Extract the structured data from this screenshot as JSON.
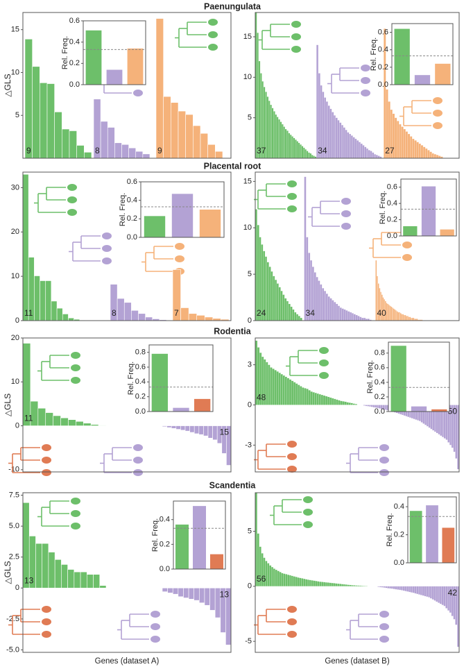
{
  "chart_data": [
    {
      "type": "bar",
      "title": "Paenungulata",
      "ylabel": "△GLS",
      "ylim": [
        0,
        17
      ],
      "yticks": [
        5,
        10,
        15
      ],
      "series": [
        {
          "color": "#6dbf6a",
          "n": 9,
          "values": [
            13.9,
            10.7,
            8.8,
            8.7,
            5.4,
            3.4,
            3.2,
            1.5,
            0.7
          ]
        },
        {
          "color": "#b3a2d4",
          "n": 8,
          "values": [
            6.9,
            4.3,
            3.6,
            1.8,
            1.6,
            1.2,
            0.8,
            0.5
          ]
        },
        {
          "color": "#f5b27a",
          "n": 9,
          "values": [
            16.3,
            7.2,
            6.5,
            5.5,
            5.1,
            3.8,
            2.9,
            1.6,
            0.8
          ]
        }
      ],
      "inset": {
        "ylabel": "Rel. Freq.",
        "values": [
          0.51,
          0.14,
          0.34
        ],
        "colors": [
          "#6dbf6a",
          "#b3a2d4",
          "#f5b27a"
        ],
        "ylim": [
          0,
          0.6
        ],
        "yticks": [
          {
            "value": 0,
            "label": "0.0"
          },
          0.2,
          0.4,
          0.6
        ],
        "reference": 0.33
      }
    },
    {
      "type": "bar",
      "ylim": [
        0,
        18
      ],
      "yticks": [
        5,
        10,
        15
      ],
      "series": [
        {
          "color": "#6dbf6a",
          "n": 37,
          "values": [
            18,
            15.5,
            12,
            10.5,
            9.5,
            8.8,
            8.2,
            7.6,
            7.1,
            6.6,
            6.2,
            5.8,
            5.4,
            5.1,
            4.8,
            4.5,
            4.2,
            3.9,
            3.6,
            3.4,
            3.1,
            2.9,
            2.7,
            2.5,
            2.3,
            2.1,
            1.9,
            1.7,
            1.5,
            1.3,
            1.1,
            0.9,
            0.7,
            0.6,
            0.4,
            0.3,
            0.2
          ]
        },
        {
          "color": "#b3a2d4",
          "n": 34,
          "values": [
            14,
            10.5,
            9,
            8.2,
            7.5,
            7,
            6.5,
            6.1,
            5.7,
            5.3,
            5,
            4.7,
            4.4,
            4.1,
            3.8,
            3.5,
            3.2,
            3,
            2.8,
            2.6,
            2.4,
            2.2,
            2,
            1.8,
            1.6,
            1.4,
            1.2,
            1,
            0.9,
            0.7,
            0.5,
            0.4,
            0.3,
            0.2
          ]
        },
        {
          "color": "#f5b27a",
          "n": 27,
          "values": [
            16,
            8.5,
            7,
            6,
            5.5,
            5,
            4.6,
            4.2,
            3.9,
            3.6,
            3.3,
            3,
            2.7,
            2.4,
            2.2,
            2,
            1.8,
            1.6,
            1.4,
            1.2,
            1,
            0.8,
            0.6,
            0.5,
            0.4,
            0.3,
            0.2
          ]
        }
      ],
      "inset": {
        "ylabel": "Rel. Freq.",
        "values": [
          0.64,
          0.11,
          0.24
        ],
        "colors": [
          "#6dbf6a",
          "#b3a2d4",
          "#f5b27a"
        ],
        "ylim": [
          0,
          0.7
        ],
        "yticks": [
          {
            "value": 0,
            "label": "0.0"
          },
          0.2,
          0.4,
          0.6
        ],
        "reference": 0.33
      }
    },
    {
      "type": "bar",
      "title": "Placental root",
      "ylim": [
        0,
        33.5
      ],
      "yticks": [
        0,
        10,
        20,
        30
      ],
      "series": [
        {
          "color": "#6dbf6a",
          "n": 11,
          "values": [
            33,
            14.3,
            10.1,
            9,
            9,
            4.4,
            2.8,
            1.5,
            0.6,
            0.3,
            0.1
          ]
        },
        {
          "color": "#b3a2d4",
          "n": 8,
          "values": [
            8.2,
            5,
            4.1,
            2.3,
            1.6,
            0.8,
            0.4,
            0.2
          ]
        },
        {
          "color": "#f5b27a",
          "n": 7,
          "values": [
            11.5,
            2.9,
            1.6,
            1.2,
            0.8,
            0.5,
            0.3
          ]
        }
      ],
      "inset": {
        "ylabel": "Rel. Freq.",
        "values": [
          0.23,
          0.47,
          0.3
        ],
        "colors": [
          "#6dbf6a",
          "#b3a2d4",
          "#f5b27a"
        ],
        "ylim": [
          0,
          0.6
        ],
        "yticks": [
          {
            "value": 0,
            "label": "0.0"
          },
          0.2,
          0.4,
          0.6
        ],
        "reference": 0.33
      }
    },
    {
      "type": "bar",
      "ylim": [
        0,
        16
      ],
      "yticks": [
        0,
        5,
        10,
        15
      ],
      "series": [
        {
          "color": "#6dbf6a",
          "n": 24,
          "values": [
            12,
            10.3,
            9,
            8.2,
            7.5,
            6.9,
            6.3,
            5.8,
            5.3,
            4.8,
            4.4,
            4,
            3.6,
            3.2,
            2.8,
            2.4,
            2.1,
            1.8,
            1.5,
            1.2,
            0.9,
            0.7,
            0.5,
            0.3
          ]
        },
        {
          "color": "#b3a2d4",
          "n": 34,
          "values": [
            15.5,
            9,
            7.3,
            6.5,
            5.8,
            5.2,
            4.7,
            4.3,
            3.9,
            3.5,
            3.2,
            2.9,
            2.6,
            2.4,
            2.2,
            2,
            1.8,
            1.6,
            1.4,
            1.3,
            1.2,
            1.1,
            1,
            0.9,
            0.8,
            0.7,
            0.6,
            0.5,
            0.4,
            0.3,
            0.3,
            0.2,
            0.2,
            0.1
          ]
        },
        {
          "color": "#f5b27a",
          "n": 40,
          "values": [
            6.5,
            4.8,
            4,
            3.5,
            3.1,
            2.8,
            2.5,
            2.3,
            2.1,
            1.9,
            1.8,
            1.7,
            1.6,
            1.5,
            1.4,
            1.3,
            1.2,
            1.1,
            1,
            0.9,
            0.9,
            0.8,
            0.7,
            0.7,
            0.6,
            0.6,
            0.5,
            0.5,
            0.4,
            0.4,
            0.3,
            0.3,
            0.3,
            0.2,
            0.2,
            0.2,
            0.1,
            0.1,
            0.1,
            0.1
          ]
        }
      ],
      "inset": {
        "ylabel": "Rel. Freq.",
        "values": [
          0.12,
          0.61,
          0.08
        ],
        "colors": [
          "#6dbf6a",
          "#b3a2d4",
          "#f5b27a"
        ],
        "ylim": [
          0,
          0.7
        ],
        "yticks": [
          {
            "value": 0,
            "label": "0.0"
          },
          0.2,
          0.4,
          0.6
        ],
        "reference": 0.33
      }
    },
    {
      "type": "bar",
      "title": "Rodentia",
      "ylabel": "△GLS",
      "ylim": [
        -10.5,
        20
      ],
      "yticks": [
        -10,
        0,
        10,
        20
      ],
      "series": [
        {
          "color": "#6dbf6a",
          "n": 11,
          "values": [
            18.8,
            5.6,
            4,
            3,
            2.3,
            1.8,
            1.4,
            1,
            0.6,
            0.3,
            0.1
          ]
        },
        {
          "color": "#b3a2d4",
          "n": 15,
          "values": [
            -0.2,
            -0.4,
            -0.6,
            -0.8,
            -1,
            -1.2,
            -1.5,
            -1.8,
            -2,
            -2.3,
            -2.8,
            -3.2,
            -4,
            -6.3,
            -9
          ]
        }
      ],
      "inset": {
        "ylabel": "Rel. Freq.",
        "values": [
          0.78,
          0.05,
          0.17
        ],
        "colors": [
          "#6dbf6a",
          "#b3a2d4",
          "#e07b54"
        ],
        "ylim": [
          0,
          0.9
        ],
        "yticks": [
          {
            "value": 0,
            "label": "0.0"
          },
          0.2,
          0.4,
          0.6,
          0.8
        ],
        "reference": 0.33
      }
    },
    {
      "type": "bar",
      "ylim": [
        -5,
        5
      ],
      "yticks": [
        -3,
        0,
        3
      ],
      "series": [
        {
          "color": "#6dbf6a",
          "n": 48,
          "values": [
            4.8,
            4.3,
            3.9,
            3.6,
            3.4,
            3.2,
            3,
            2.8,
            2.7,
            2.6,
            2.5,
            2.4,
            2.3,
            2.2,
            2.1,
            2,
            1.9,
            1.8,
            1.7,
            1.6,
            1.5,
            1.4,
            1.3,
            1.25,
            1.2,
            1.1,
            1,
            0.95,
            0.9,
            0.85,
            0.8,
            0.75,
            0.7,
            0.65,
            0.6,
            0.55,
            0.5,
            0.45,
            0.4,
            0.35,
            0.3,
            0.27,
            0.24,
            0.2,
            0.17,
            0.14,
            0.1,
            0.07
          ]
        },
        {
          "color": "#b3a2d4",
          "n": 50,
          "values": [
            -0.05,
            -0.08,
            -0.1,
            -0.12,
            -0.15,
            -0.18,
            -0.2,
            -0.23,
            -0.26,
            -0.3,
            -0.33,
            -0.36,
            -0.4,
            -0.44,
            -0.48,
            -0.52,
            -0.56,
            -0.6,
            -0.65,
            -0.7,
            -0.75,
            -0.8,
            -0.85,
            -0.9,
            -0.95,
            -1,
            -1.05,
            -1.1,
            -1.15,
            -1.2,
            -1.3,
            -1.4,
            -1.5,
            -1.6,
            -1.7,
            -1.8,
            -1.9,
            -2,
            -2.1,
            -2.2,
            -2.3,
            -2.4,
            -2.5,
            -2.6,
            -2.8,
            -3,
            -3.2,
            -3.5,
            -4,
            -4.8
          ]
        }
      ],
      "inset": {
        "ylabel": "Rel. Freq.",
        "values": [
          0.9,
          0.07,
          0.03
        ],
        "colors": [
          "#6dbf6a",
          "#b3a2d4",
          "#e07b54"
        ],
        "ylim": [
          0,
          0.95
        ],
        "yticks": [
          {
            "value": 0,
            "label": "0.0"
          },
          0.2,
          0.4,
          0.6,
          0.8
        ],
        "reference": 0.33
      }
    },
    {
      "type": "bar",
      "title": "Scandentia",
      "ylabel": "△GLS",
      "xlabel": "Genes (dataset A)",
      "ylim": [
        -5.2,
        7.7
      ],
      "yticks": [
        {
          "value": -5,
          "label": "-5.0"
        },
        -2.5,
        0,
        2.5,
        {
          "value": 5,
          "label": "5.0"
        },
        7.5
      ],
      "series": [
        {
          "color": "#6dbf6a",
          "n": 13,
          "values": [
            6.9,
            4.2,
            3.6,
            3.6,
            2.9,
            2.3,
            1.9,
            1.5,
            1.3,
            1.3,
            1.1,
            1.1,
            0.2
          ]
        },
        {
          "color": "#b3a2d4",
          "n": 13,
          "values": [
            -0.3,
            -0.4,
            -0.5,
            -0.7,
            -0.8,
            -0.9,
            -1,
            -1.2,
            -1.4,
            -1.8,
            -2.4,
            -3.6,
            -4.6
          ]
        }
      ],
      "inset": {
        "ylabel": "Rel. Freq.",
        "values": [
          0.36,
          0.51,
          0.12
        ],
        "colors": [
          "#6dbf6a",
          "#b3a2d4",
          "#e07b54"
        ],
        "ylim": [
          0,
          0.55
        ],
        "yticks": [
          {
            "value": 0,
            "label": "0.0"
          },
          0.2,
          0.4
        ],
        "reference": 0.33
      }
    },
    {
      "type": "bar",
      "xlabel": "Genes (dataset B)",
      "ylim": [
        -6,
        8.5
      ],
      "yticks": [
        -5,
        0,
        5
      ],
      "series": [
        {
          "color": "#6dbf6a",
          "n": 56,
          "values": [
            8.5,
            4.8,
            3.6,
            3,
            2.6,
            2.3,
            2.1,
            1.9,
            1.75,
            1.6,
            1.5,
            1.4,
            1.3,
            1.2,
            1.15,
            1.1,
            1.05,
            1,
            0.95,
            0.9,
            0.85,
            0.8,
            0.76,
            0.72,
            0.68,
            0.64,
            0.6,
            0.57,
            0.54,
            0.51,
            0.48,
            0.45,
            0.42,
            0.4,
            0.38,
            0.36,
            0.34,
            0.32,
            0.3,
            0.28,
            0.26,
            0.24,
            0.22,
            0.2,
            0.18,
            0.16,
            0.14,
            0.12,
            0.1,
            0.09,
            0.08,
            0.07,
            0.06,
            0.05,
            0.04,
            0.03
          ]
        },
        {
          "color": "#b3a2d4",
          "n": 42,
          "values": [
            -0.05,
            -0.08,
            -0.1,
            -0.12,
            -0.15,
            -0.18,
            -0.2,
            -0.22,
            -0.25,
            -0.28,
            -0.3,
            -0.33,
            -0.36,
            -0.4,
            -0.44,
            -0.48,
            -0.52,
            -0.56,
            -0.6,
            -0.65,
            -0.7,
            -0.75,
            -0.8,
            -0.85,
            -0.9,
            -0.95,
            -1,
            -1.1,
            -1.2,
            -1.3,
            -1.4,
            -1.5,
            -1.6,
            -1.7,
            -1.8,
            -2,
            -2.2,
            -2.4,
            -2.7,
            -3,
            -3.5,
            -5.5
          ]
        }
      ],
      "inset": {
        "ylabel": "Rel. Freq.",
        "values": [
          0.37,
          0.41,
          0.25
        ],
        "colors": [
          "#6dbf6a",
          "#b3a2d4",
          "#e07b54"
        ],
        "ylim": [
          0,
          0.47
        ],
        "yticks": [
          {
            "value": 0,
            "label": "0.0"
          },
          0.2,
          0.4
        ],
        "reference": 0.33
      }
    }
  ]
}
